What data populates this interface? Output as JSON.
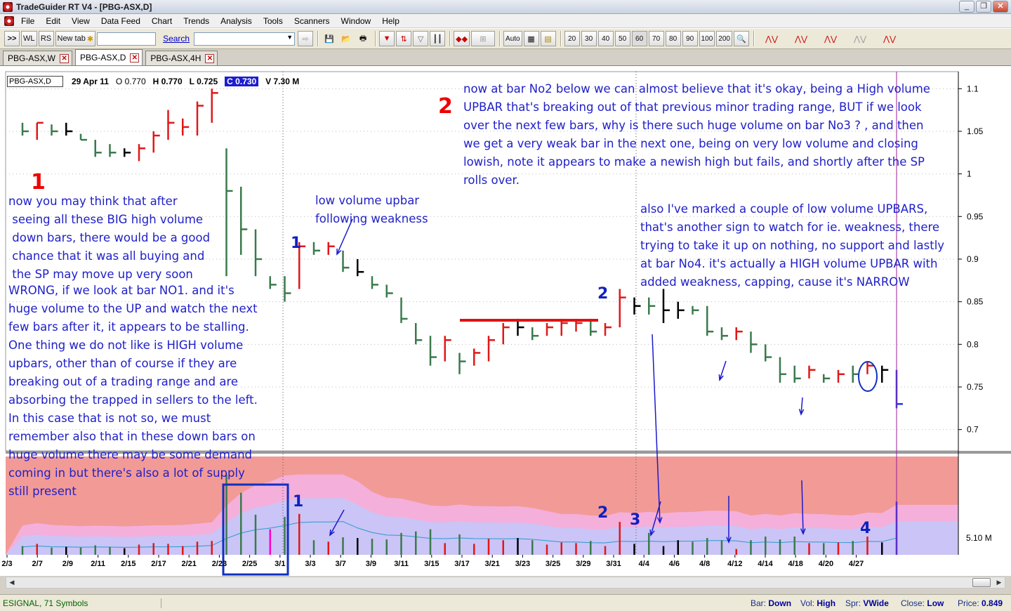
{
  "window": {
    "title": "TradeGuider RT V4  - [PBG-ASX,D]"
  },
  "menu": [
    "File",
    "Edit",
    "View",
    "Data Feed",
    "Chart",
    "Trends",
    "Analysis",
    "Tools",
    "Scanners",
    "Window",
    "Help"
  ],
  "toolbar": {
    "wl": "WL",
    "rs": "RS",
    "newtab": "New tab",
    "search": "Search",
    "auto": "Auto",
    "zoom": [
      "20",
      "30",
      "40",
      "50",
      "60",
      "70",
      "80",
      "90",
      "100",
      "200"
    ]
  },
  "tabs": [
    "PBG-ASX,W",
    "PBG-ASX,D",
    "PBG-ASX,4H"
  ],
  "header": {
    "symbol": "PBG-ASX,D",
    "date": "29 Apr 11",
    "open": "O 0.770",
    "high": "H 0.770",
    "low": "L 0.725",
    "close": "C 0.730",
    "volume": "V 7.30 M"
  },
  "status": {
    "left": "ESIGNAL, 71 Symbols",
    "bar_label": "Bar:",
    "bar": "Down",
    "vol_label": "Vol:",
    "vol": "High",
    "spr_label": "Spr:",
    "spr": "VWide",
    "close_label": "Close:",
    "close": "Low",
    "price_label": "Price:",
    "price": "0.849"
  },
  "annotations": {
    "big1": "1",
    "big2": "2",
    "text1": "now you may think that after\n seeing all these BIG high volume\n down bars, there would be a good\n chance that it was all buying and\n the SP may move up very soon",
    "text1b": "WRONG, if we look at bar NO1. and it's\nhuge volume to the UP and watch the next\nfew bars after it, it appears to be stalling.\nOne thing we do not like is HIGH volume\nupbars, other than of course if they are\nbreaking out of a trading range and are\nabsorbing the trapped in sellers to the left.\nIn this case that is not so, we must\nremember also that in these down bars on\nhuge volume there may be some demand\ncoming in but there's also a lot of supply\nstill present",
    "text2": "now at bar No2 below we can almost believe that it's okay, being a High volume\nUPBAR that's breaking out of that previous minor trading range, BUT if we look\nover the next few bars, why is there such huge volume on bar No3 ? , and then\nwe get a very weak bar in the next one, being on very low volume and closing\nlowish, note it appears to make a newish high but fails, and shortly after the SP\nrolls over.",
    "text3": "low volume upbar\nfollowing weakness",
    "text4": "also I've marked a couple of low volume UPBARS,\nthat's another sign to watch for ie. weakness, there\ntrying to take it up on nothing, no support and lastly\nat bar No4. it's actually a HIGH volume UPBAR with\nadded weakness, capping, cause it's NARROW",
    "m1": "1",
    "m2": "2",
    "m1v": "1",
    "m2v": "2",
    "m3v": "3",
    "m4v": "4"
  },
  "chart_data": {
    "type": "ohlc",
    "symbol": "PBG-ASX,D",
    "y_ticks": [
      1.1,
      1.05,
      1,
      0.95,
      0.9,
      0.85,
      0.8,
      0.75,
      0.7
    ],
    "volume_label": "5.10 M",
    "x_ticks": [
      "2/3",
      "2/7",
      "2/9",
      "2/11",
      "2/15",
      "2/17",
      "2/21",
      "2/23",
      "2/25",
      "3/1",
      "3/3",
      "3/7",
      "3/9",
      "3/11",
      "3/15",
      "3/17",
      "3/21",
      "3/23",
      "3/25",
      "3/29",
      "3/31",
      "4/4",
      "4/6",
      "4/8",
      "4/12",
      "4/14",
      "4/18",
      "4/20",
      "4/27"
    ],
    "bars": [
      {
        "h": 1.06,
        "l": 1.045,
        "o": 1.06,
        "c": 1.05,
        "v": 1.2,
        "col": "g"
      },
      {
        "h": 1.06,
        "l": 1.04,
        "o": 1.045,
        "c": 1.06,
        "v": 1.5,
        "col": "r"
      },
      {
        "h": 1.058,
        "l": 1.045,
        "o": 1.055,
        "c": 1.05,
        "v": 1.0,
        "col": "g"
      },
      {
        "h": 1.06,
        "l": 1.045,
        "o": 1.055,
        "c": 1.05,
        "v": 1.1,
        "col": "k"
      },
      {
        "h": 1.047,
        "l": 1.04,
        "o": 1.045,
        "c": 1.04,
        "v": 1.0,
        "col": "g"
      },
      {
        "h": 1.04,
        "l": 1.02,
        "o": 1.035,
        "c": 1.025,
        "v": 1.3,
        "col": "g"
      },
      {
        "h": 1.035,
        "l": 1.02,
        "o": 1.03,
        "c": 1.025,
        "v": 1.1,
        "col": "g"
      },
      {
        "h": 1.03,
        "l": 1.02,
        "o": 1.025,
        "c": 1.025,
        "v": 0.9,
        "col": "k"
      },
      {
        "h": 1.035,
        "l": 1.015,
        "o": 1.02,
        "c": 1.03,
        "v": 1.4,
        "col": "r"
      },
      {
        "h": 1.05,
        "l": 1.025,
        "o": 1.03,
        "c": 1.045,
        "v": 1.6,
        "col": "r"
      },
      {
        "h": 1.075,
        "l": 1.04,
        "o": 1.045,
        "c": 1.06,
        "v": 1.5,
        "col": "r"
      },
      {
        "h": 1.065,
        "l": 1.045,
        "o": 1.05,
        "c": 1.055,
        "v": 1.2,
        "col": "r"
      },
      {
        "h": 1.085,
        "l": 1.045,
        "o": 1.05,
        "c": 1.08,
        "v": 1.8,
        "col": "r"
      },
      {
        "h": 1.1,
        "l": 1.06,
        "o": 1.065,
        "c": 1.095,
        "v": 1.9,
        "col": "r"
      },
      {
        "h": 1.03,
        "l": 0.88,
        "o": 1.02,
        "c": 0.98,
        "v": 11.0,
        "col": "g"
      },
      {
        "h": 0.985,
        "l": 0.905,
        "o": 0.98,
        "c": 0.935,
        "v": 8.5,
        "col": "g"
      },
      {
        "h": 0.935,
        "l": 0.88,
        "o": 0.93,
        "c": 0.9,
        "v": 5.5,
        "col": "g"
      },
      {
        "h": 0.88,
        "l": 0.865,
        "o": 0.876,
        "c": 0.87,
        "v": 3.5,
        "col": "m"
      },
      {
        "h": 0.88,
        "l": 0.85,
        "o": 0.875,
        "c": 0.86,
        "v": 5.2,
        "col": "g"
      },
      {
        "h": 0.92,
        "l": 0.865,
        "o": 0.87,
        "c": 0.915,
        "v": 5.6,
        "col": "r"
      },
      {
        "h": 0.92,
        "l": 0.905,
        "o": 0.915,
        "c": 0.91,
        "v": 2.0,
        "col": "g"
      },
      {
        "h": 0.92,
        "l": 0.905,
        "o": 0.91,
        "c": 0.915,
        "v": 1.8,
        "col": "r"
      },
      {
        "h": 0.91,
        "l": 0.885,
        "o": 0.905,
        "c": 0.89,
        "v": 2.4,
        "col": "g"
      },
      {
        "h": 0.9,
        "l": 0.88,
        "o": 0.895,
        "c": 0.885,
        "v": 2.3,
        "col": "k"
      },
      {
        "h": 0.88,
        "l": 0.865,
        "o": 0.875,
        "c": 0.87,
        "v": 2.2,
        "col": "g"
      },
      {
        "h": 0.87,
        "l": 0.855,
        "o": 0.865,
        "c": 0.86,
        "v": 2.1,
        "col": "g"
      },
      {
        "h": 0.855,
        "l": 0.825,
        "o": 0.85,
        "c": 0.83,
        "v": 3.0,
        "col": "g"
      },
      {
        "h": 0.825,
        "l": 0.8,
        "o": 0.82,
        "c": 0.805,
        "v": 3.2,
        "col": "g"
      },
      {
        "h": 0.81,
        "l": 0.775,
        "o": 0.805,
        "c": 0.785,
        "v": 3.5,
        "col": "g"
      },
      {
        "h": 0.81,
        "l": 0.78,
        "o": 0.785,
        "c": 0.805,
        "v": 1.6,
        "col": "r"
      },
      {
        "h": 0.79,
        "l": 0.765,
        "o": 0.785,
        "c": 0.78,
        "v": 2.8,
        "col": "g"
      },
      {
        "h": 0.795,
        "l": 0.775,
        "o": 0.78,
        "c": 0.79,
        "v": 1.5,
        "col": "r"
      },
      {
        "h": 0.81,
        "l": 0.78,
        "o": 0.785,
        "c": 0.805,
        "v": 2.2,
        "col": "r"
      },
      {
        "h": 0.825,
        "l": 0.8,
        "o": 0.805,
        "c": 0.82,
        "v": 2.0,
        "col": "r"
      },
      {
        "h": 0.83,
        "l": 0.81,
        "o": 0.82,
        "c": 0.82,
        "v": 2.3,
        "col": "k"
      },
      {
        "h": 0.82,
        "l": 0.805,
        "o": 0.815,
        "c": 0.81,
        "v": 2.0,
        "col": "g"
      },
      {
        "h": 0.825,
        "l": 0.81,
        "o": 0.812,
        "c": 0.82,
        "v": 1.4,
        "col": "r"
      },
      {
        "h": 0.83,
        "l": 0.81,
        "o": 0.815,
        "c": 0.825,
        "v": 1.7,
        "col": "r"
      },
      {
        "h": 0.83,
        "l": 0.815,
        "o": 0.82,
        "c": 0.825,
        "v": 1.6,
        "col": "r"
      },
      {
        "h": 0.83,
        "l": 0.81,
        "o": 0.825,
        "c": 0.815,
        "v": 1.9,
        "col": "g"
      },
      {
        "h": 0.825,
        "l": 0.81,
        "o": 0.815,
        "c": 0.82,
        "v": 1.2,
        "col": "r"
      },
      {
        "h": 0.865,
        "l": 0.82,
        "o": 0.825,
        "c": 0.855,
        "v": 4.5,
        "col": "r"
      },
      {
        "h": 0.855,
        "l": 0.835,
        "o": 0.85,
        "c": 0.845,
        "v": 1.5,
        "col": "k"
      },
      {
        "h": 0.855,
        "l": 0.835,
        "o": 0.85,
        "c": 0.845,
        "v": 3.0,
        "col": "g"
      },
      {
        "h": 0.865,
        "l": 0.825,
        "o": 0.845,
        "c": 0.84,
        "v": 1.2,
        "col": "k"
      },
      {
        "h": 0.85,
        "l": 0.83,
        "o": 0.845,
        "c": 0.84,
        "v": 2.0,
        "col": "k"
      },
      {
        "h": 0.845,
        "l": 0.835,
        "o": 0.84,
        "c": 0.84,
        "v": 1.8,
        "col": "g"
      },
      {
        "h": 0.845,
        "l": 0.81,
        "o": 0.84,
        "c": 0.815,
        "v": 2.3,
        "col": "g"
      },
      {
        "h": 0.82,
        "l": 0.805,
        "o": 0.815,
        "c": 0.81,
        "v": 2.0,
        "col": "g"
      },
      {
        "h": 0.82,
        "l": 0.805,
        "o": 0.81,
        "c": 0.815,
        "v": 0.8,
        "col": "r"
      },
      {
        "h": 0.815,
        "l": 0.79,
        "o": 0.81,
        "c": 0.8,
        "v": 2.0,
        "col": "g"
      },
      {
        "h": 0.8,
        "l": 0.78,
        "o": 0.795,
        "c": 0.785,
        "v": 2.5,
        "col": "g"
      },
      {
        "h": 0.785,
        "l": 0.755,
        "o": 0.78,
        "c": 0.765,
        "v": 2.1,
        "col": "g"
      },
      {
        "h": 0.775,
        "l": 0.755,
        "o": 0.77,
        "c": 0.76,
        "v": 2.5,
        "col": "g"
      },
      {
        "h": 0.775,
        "l": 0.76,
        "o": 0.762,
        "c": 0.77,
        "v": 1.6,
        "col": "r"
      },
      {
        "h": 0.765,
        "l": 0.755,
        "o": 0.76,
        "c": 0.76,
        "v": 1.6,
        "col": "g"
      },
      {
        "h": 0.77,
        "l": 0.755,
        "o": 0.76,
        "c": 0.765,
        "v": 1.7,
        "col": "r"
      },
      {
        "h": 0.775,
        "l": 0.755,
        "o": 0.77,
        "c": 0.765,
        "v": 1.9,
        "col": "g"
      },
      {
        "h": 0.78,
        "l": 0.765,
        "o": 0.77,
        "c": 0.775,
        "v": 2.5,
        "col": "r"
      },
      {
        "h": 0.775,
        "l": 0.755,
        "o": 0.77,
        "c": 0.77,
        "v": 1.7,
        "col": "k"
      },
      {
        "h": 0.77,
        "l": 0.725,
        "o": 0.77,
        "c": 0.73,
        "v": 7.3,
        "col": "b"
      }
    ]
  }
}
